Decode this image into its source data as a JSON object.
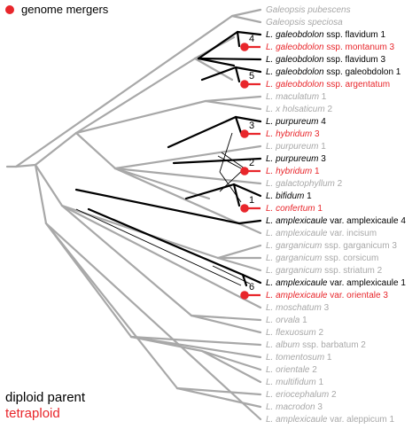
{
  "legend": {
    "merger_label": "genome mergers",
    "diploid_label": "diploid parent",
    "tetraploid_label": "tetraploid",
    "colors": {
      "merger": "#e8262b",
      "diploid": "#000000",
      "tetraploid": "#e8262b",
      "other": "#a8a8a8"
    }
  },
  "taxa": [
    {
      "genus": "Galeopsis",
      "epithet": "pubescens",
      "suffix": "",
      "status": "gray"
    },
    {
      "genus": "Galeopsis",
      "epithet": "speciosa",
      "suffix": "",
      "status": "gray"
    },
    {
      "genus": "L.",
      "epithet": "galeobdolon",
      "suffix": " ssp. flavidum 1",
      "status": "black"
    },
    {
      "genus": "L.",
      "epithet": "galeobdolon",
      "suffix": " ssp. montanum 3",
      "status": "red"
    },
    {
      "genus": "L.",
      "epithet": "galeobdolon",
      "suffix": " ssp. flavidum 3",
      "status": "black"
    },
    {
      "genus": "L.",
      "epithet": "galeobdolon",
      "suffix": " ssp. galeobdolon 1",
      "status": "black"
    },
    {
      "genus": "L.",
      "epithet": "galeobdolon",
      "suffix": " ssp. argentatum",
      "status": "red"
    },
    {
      "genus": "L.",
      "epithet": "maculatum",
      "suffix": " 1",
      "status": "gray"
    },
    {
      "genus": "L.",
      "epithet": "x holsaticum",
      "suffix": " 2",
      "status": "gray"
    },
    {
      "genus": "L.",
      "epithet": "purpureum",
      "suffix": " 4",
      "status": "black"
    },
    {
      "genus": "L.",
      "epithet": "hybridum",
      "suffix": " 3",
      "status": "red"
    },
    {
      "genus": "L.",
      "epithet": "purpureum",
      "suffix": " 1",
      "status": "gray"
    },
    {
      "genus": "L.",
      "epithet": "purpureum",
      "suffix": " 3",
      "status": "black"
    },
    {
      "genus": "L.",
      "epithet": "hybridum",
      "suffix": " 1",
      "status": "red"
    },
    {
      "genus": "L.",
      "epithet": "galactophyllum",
      "suffix": " 2",
      "status": "gray"
    },
    {
      "genus": "L.",
      "epithet": "bifidum",
      "suffix": " 1",
      "status": "black"
    },
    {
      "genus": "L.",
      "epithet": "confertum",
      "suffix": " 1",
      "status": "red"
    },
    {
      "genus": "L.",
      "epithet": "amplexicaule",
      "suffix": " var. amplexicaule 4",
      "status": "black"
    },
    {
      "genus": "L.",
      "epithet": "amplexicaule",
      "suffix": " var. incisum",
      "status": "gray"
    },
    {
      "genus": "L.",
      "epithet": "garganicum",
      "suffix": " ssp. garganicum 3",
      "status": "gray"
    },
    {
      "genus": "L.",
      "epithet": "garganicum",
      "suffix": " ssp. corsicum",
      "status": "gray"
    },
    {
      "genus": "L.",
      "epithet": "garganicum",
      "suffix": " ssp. striatum 2",
      "status": "gray"
    },
    {
      "genus": "L.",
      "epithet": "amplexicaule",
      "suffix": " var. amplexicaule 1",
      "status": "black"
    },
    {
      "genus": "L.",
      "epithet": "amplexicaule",
      "suffix": " var. orientale 3",
      "status": "red"
    },
    {
      "genus": "L.",
      "epithet": "moschatum",
      "suffix": " 3",
      "status": "gray"
    },
    {
      "genus": "L.",
      "epithet": "orvala",
      "suffix": " 1",
      "status": "gray"
    },
    {
      "genus": "L.",
      "epithet": "flexuosum",
      "suffix": " 2",
      "status": "gray"
    },
    {
      "genus": "L.",
      "epithet": "album",
      "suffix": " ssp. barbatum 2",
      "status": "gray"
    },
    {
      "genus": "L.",
      "epithet": "tomentosum",
      "suffix": " 1",
      "status": "gray"
    },
    {
      "genus": "L.",
      "epithet": "orientale",
      "suffix": " 2",
      "status": "gray"
    },
    {
      "genus": "L.",
      "epithet": "multifidum",
      "suffix": " 1",
      "status": "gray"
    },
    {
      "genus": "L.",
      "epithet": "eriocephalum",
      "suffix": " 2",
      "status": "gray"
    },
    {
      "genus": "L.",
      "epithet": "macrodon",
      "suffix": " 3",
      "status": "gray"
    },
    {
      "genus": "L.",
      "epithet": "amplexicaule",
      "suffix": " var. aleppicum 1",
      "status": "gray"
    }
  ],
  "mergers": [
    {
      "number": "1",
      "tetraploid_index": 16
    },
    {
      "number": "2",
      "tetraploid_index": 13
    },
    {
      "number": "3",
      "tetraploid_index": 10
    },
    {
      "number": "4",
      "tetraploid_index": 3
    },
    {
      "number": "5",
      "tetraploid_index": 6
    },
    {
      "number": "6",
      "tetraploid_index": 23
    }
  ]
}
